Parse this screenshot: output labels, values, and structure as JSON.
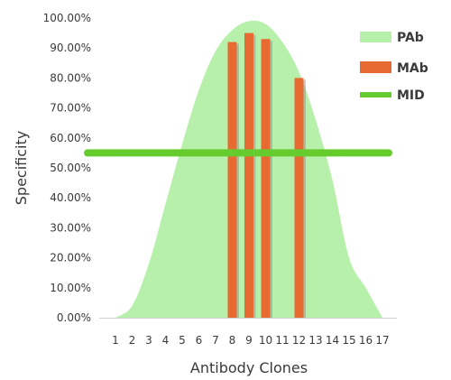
{
  "chart_data": {
    "type": "bar",
    "xlabel": "Antibody Clones",
    "ylabel": "Specificity",
    "ylim": [
      0,
      1
    ],
    "yticks": [
      "0.00%",
      "10.00%",
      "20.00%",
      "30.00%",
      "40.00%",
      "50.00%",
      "60.00%",
      "70.00%",
      "80.00%",
      "90.00%",
      "100.00%"
    ],
    "categories": [
      "1",
      "2",
      "3",
      "4",
      "5",
      "6",
      "7",
      "8",
      "9",
      "10",
      "11",
      "12",
      "13",
      "14",
      "15",
      "16",
      "17"
    ],
    "legend_position": "right",
    "grid": false,
    "series": [
      {
        "name": "PAb",
        "type": "area",
        "color": "#b7f0ab",
        "values": [
          0,
          0.04,
          0.18,
          0.38,
          0.58,
          0.76,
          0.89,
          0.96,
          0.99,
          0.98,
          0.92,
          0.82,
          0.66,
          0.46,
          0.2,
          0.1,
          0
        ]
      },
      {
        "name": "MAb",
        "type": "bar",
        "color": "#e86a33",
        "values": [
          null,
          null,
          null,
          null,
          null,
          null,
          null,
          0.92,
          0.95,
          0.93,
          null,
          0.8,
          null,
          null,
          null,
          null,
          null
        ]
      },
      {
        "name": "MID",
        "type": "line",
        "color": "#66cc2e",
        "values": [
          0.55,
          0.55,
          0.55,
          0.55,
          0.55,
          0.55,
          0.55,
          0.55,
          0.55,
          0.55,
          0.55,
          0.55,
          0.55,
          0.55,
          0.55,
          0.55,
          0.55
        ]
      }
    ]
  }
}
